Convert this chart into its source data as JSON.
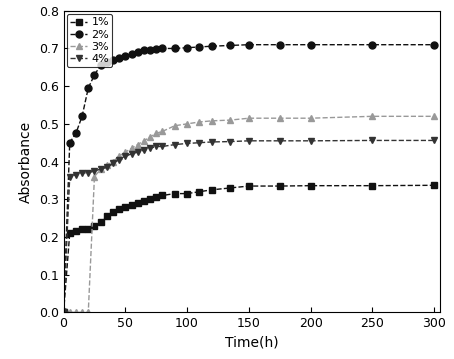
{
  "title": "",
  "xlabel": "Time(h)",
  "ylabel": "Absorbance",
  "xlim": [
    0,
    305
  ],
  "ylim": [
    0.0,
    0.8
  ],
  "xticks": [
    0,
    50,
    100,
    150,
    200,
    250,
    300
  ],
  "yticks": [
    0.0,
    0.1,
    0.2,
    0.3,
    0.4,
    0.5,
    0.6,
    0.7,
    0.8
  ],
  "series": [
    {
      "label": "1%",
      "color": "#111111",
      "marker": "s",
      "linestyle": "--",
      "x": [
        0,
        5,
        10,
        15,
        20,
        25,
        30,
        35,
        40,
        45,
        50,
        55,
        60,
        65,
        70,
        75,
        80,
        90,
        100,
        110,
        120,
        135,
        150,
        175,
        200,
        250,
        300
      ],
      "y": [
        0.0,
        0.21,
        0.215,
        0.22,
        0.22,
        0.23,
        0.24,
        0.255,
        0.265,
        0.275,
        0.28,
        0.285,
        0.29,
        0.295,
        0.3,
        0.305,
        0.31,
        0.315,
        0.315,
        0.32,
        0.325,
        0.33,
        0.335,
        0.335,
        0.336,
        0.336,
        0.337
      ]
    },
    {
      "label": "2%",
      "color": "#111111",
      "marker": "o",
      "linestyle": "--",
      "x": [
        0,
        5,
        10,
        15,
        20,
        25,
        30,
        35,
        40,
        45,
        50,
        55,
        60,
        65,
        70,
        75,
        80,
        90,
        100,
        110,
        120,
        135,
        150,
        175,
        200,
        250,
        300
      ],
      "y": [
        0.0,
        0.45,
        0.475,
        0.52,
        0.595,
        0.63,
        0.655,
        0.665,
        0.67,
        0.675,
        0.68,
        0.685,
        0.69,
        0.695,
        0.695,
        0.698,
        0.7,
        0.7,
        0.702,
        0.704,
        0.706,
        0.708,
        0.71,
        0.71,
        0.71,
        0.71,
        0.71
      ]
    },
    {
      "label": "3%",
      "color": "#999999",
      "marker": "^",
      "linestyle": "--",
      "x": [
        0,
        5,
        10,
        15,
        20,
        25,
        30,
        35,
        40,
        45,
        50,
        55,
        60,
        65,
        70,
        75,
        80,
        90,
        100,
        110,
        120,
        135,
        150,
        175,
        200,
        250,
        300
      ],
      "y": [
        0.0,
        0.0,
        0.0,
        0.0,
        0.0,
        0.36,
        0.38,
        0.39,
        0.4,
        0.415,
        0.425,
        0.435,
        0.445,
        0.455,
        0.465,
        0.475,
        0.48,
        0.495,
        0.5,
        0.505,
        0.508,
        0.51,
        0.515,
        0.515,
        0.515,
        0.52,
        0.52
      ]
    },
    {
      "label": "4%",
      "color": "#333333",
      "marker": "v",
      "linestyle": "--",
      "x": [
        0,
        5,
        10,
        15,
        20,
        25,
        30,
        35,
        40,
        45,
        50,
        55,
        60,
        65,
        70,
        75,
        80,
        90,
        100,
        110,
        120,
        135,
        150,
        175,
        200,
        250,
        300
      ],
      "y": [
        0.0,
        0.36,
        0.365,
        0.37,
        0.37,
        0.375,
        0.38,
        0.385,
        0.395,
        0.405,
        0.415,
        0.42,
        0.425,
        0.43,
        0.435,
        0.44,
        0.44,
        0.445,
        0.448,
        0.45,
        0.452,
        0.453,
        0.455,
        0.455,
        0.455,
        0.456,
        0.456
      ]
    }
  ],
  "background_color": "#ffffff",
  "legend_fontsize": 8,
  "axis_fontsize": 10,
  "tick_fontsize": 9,
  "marker_size": 5,
  "linewidth": 1.0
}
